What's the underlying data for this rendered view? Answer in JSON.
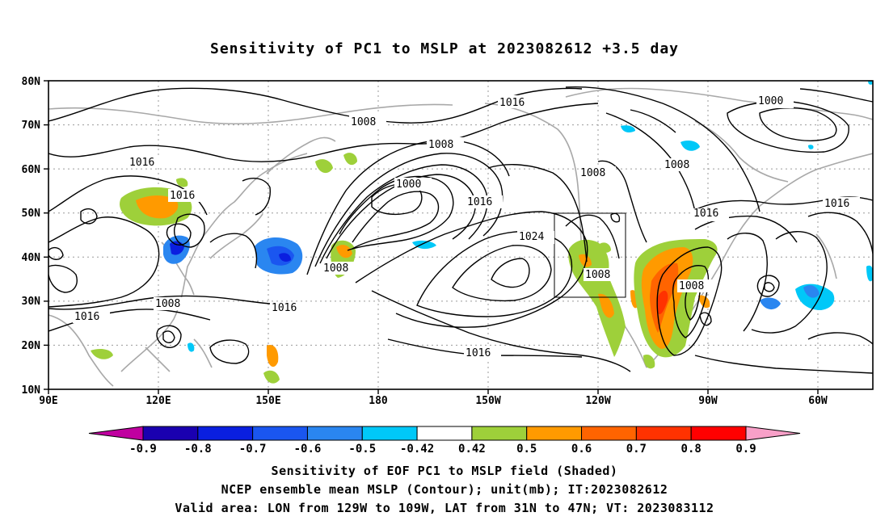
{
  "title": "Sensitivity of PC1 to MSLP at 2023082612 +3.5 day",
  "y_ticks": [
    "80N",
    "70N",
    "60N",
    "50N",
    "40N",
    "30N",
    "20N",
    "10N"
  ],
  "x_ticks": [
    "90E",
    "120E",
    "150E",
    "180",
    "150W",
    "120W",
    "90W",
    "60W"
  ],
  "contour_labels": [
    "1016",
    "1008",
    "1016",
    "1008",
    "1016",
    "1000",
    "1008",
    "1008",
    "1000",
    "1016",
    "1016",
    "1008",
    "1024",
    "1016",
    "1008",
    "1016",
    "1016",
    "1016",
    "1008",
    "1008",
    "1016"
  ],
  "colorbar": {
    "labels": [
      "-0.9",
      "-0.8",
      "-0.7",
      "-0.6",
      "-0.5",
      "-0.42",
      "0.42",
      "0.5",
      "0.6",
      "0.7",
      "0.8",
      "0.9"
    ],
    "colors": [
      "#c000a0",
      "#1a00b0",
      "#0a1fe0",
      "#1a56f0",
      "#2a86f0",
      "#00c8f8",
      "#ffffff",
      "#9ed03a",
      "#ff9a00",
      "#ff6400",
      "#ff3200",
      "#ff0000",
      "#f8a0c8"
    ]
  },
  "captions": [
    "Sensitivity of EOF PC1 to MSLP field (Shaded)",
    "NCEP ensemble mean MSLP (Contour); unit(mb); IT:2023082612",
    "Valid area: LON from 129W to 109W, LAT from 31N to 47N; VT: 2023083112"
  ]
}
